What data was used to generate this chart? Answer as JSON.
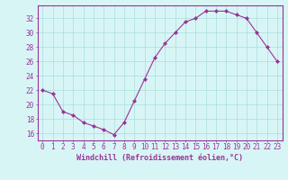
{
  "x": [
    0,
    1,
    2,
    3,
    4,
    5,
    6,
    7,
    8,
    9,
    10,
    11,
    12,
    13,
    14,
    15,
    16,
    17,
    18,
    19,
    20,
    21,
    22,
    23
  ],
  "y": [
    22,
    21.5,
    19,
    18.5,
    17.5,
    17,
    16.5,
    15.8,
    17.5,
    20.5,
    23.5,
    26.5,
    28.5,
    30,
    31.5,
    32,
    33,
    33,
    33,
    32.5,
    32,
    30,
    28,
    26
  ],
  "line_color": "#993399",
  "marker": "D",
  "marker_size": 2,
  "background_color": "#d8f5f5",
  "grid_color": "#aadddd",
  "xlabel": "Windchill (Refroidissement éolien,°C)",
  "xlim": [
    -0.5,
    23.5
  ],
  "ylim": [
    15.0,
    33.8
  ],
  "yticks": [
    16,
    18,
    20,
    22,
    24,
    26,
    28,
    30,
    32
  ],
  "xticks": [
    0,
    1,
    2,
    3,
    4,
    5,
    6,
    7,
    8,
    9,
    10,
    11,
    12,
    13,
    14,
    15,
    16,
    17,
    18,
    19,
    20,
    21,
    22,
    23
  ],
  "tick_color": "#993399",
  "label_color": "#993399",
  "spine_color": "#993399",
  "font_size": 5.5,
  "xlabel_fontsize": 6.0
}
